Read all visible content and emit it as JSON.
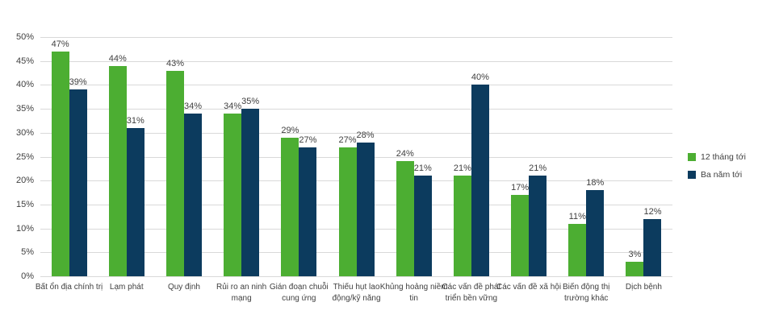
{
  "chart_data": {
    "type": "bar",
    "title": "",
    "xlabel": "",
    "ylabel": "",
    "categories": [
      "Bất ổn địa chính trị",
      "Lạm phát",
      "Quy định",
      "Rủi ro an ninh mạng",
      "Gián đoạn chuỗi cung ứng",
      "Thiếu hụt lao động/kỹ năng",
      "Khủng hoảng niềm tin",
      "Các vấn đề phát triển bền vững",
      "Các vấn đề xã hội",
      "Biến động thị trường khác",
      "Dịch bệnh"
    ],
    "series": [
      {
        "name": "12 tháng tới",
        "color": "#4CAE32",
        "values": [
          47,
          44,
          43,
          34,
          29,
          27,
          24,
          21,
          17,
          11,
          3
        ]
      },
      {
        "name": "Ba năm tới",
        "color": "#0C3B5E",
        "values": [
          39,
          31,
          34,
          35,
          27,
          28,
          21,
          40,
          21,
          18,
          12
        ]
      }
    ],
    "value_label_suffix": "%",
    "ylim": [
      0,
      50
    ],
    "ytick_step": 5,
    "ytick_labels": [
      "0%",
      "5%",
      "10%",
      "15%",
      "20%",
      "25%",
      "30%",
      "35%",
      "40%",
      "45%",
      "50%"
    ],
    "grid": true,
    "legend_position": "right"
  },
  "colors": {
    "gridline": "#D9D9D9",
    "axis_text": "#404040",
    "background": "#FFFFFF"
  }
}
